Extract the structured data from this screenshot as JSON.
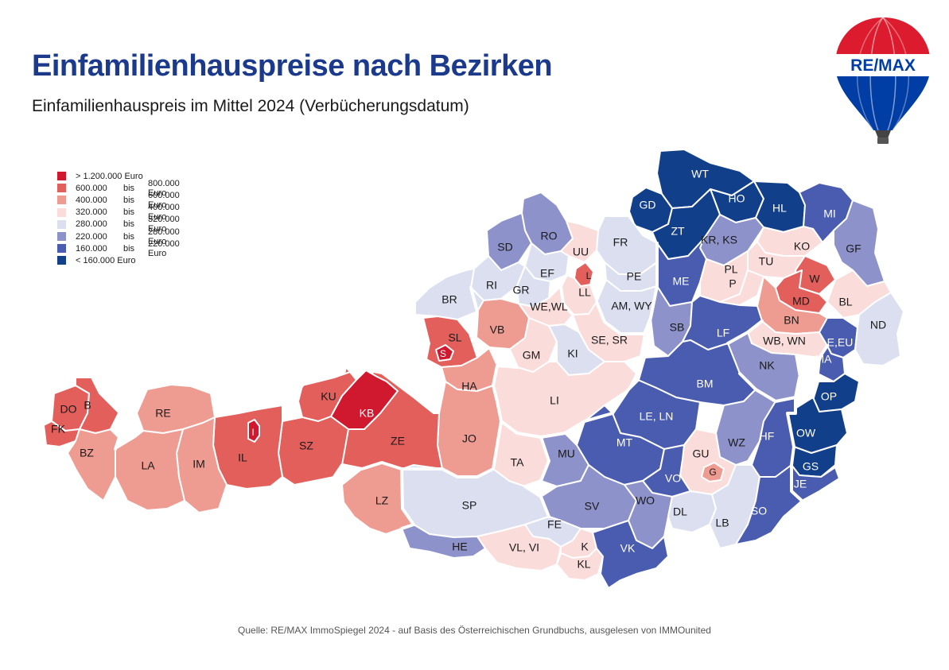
{
  "title": "Einfamilienhauspreise nach Bezirken",
  "subtitle": "Einfamilienhauspreis im Mittel 2024 (Verbücherungsdatum)",
  "source": "Quelle: RE/MAX ImmoSpiegel 2024 - auf Basis des Österreichischen Grundbuchs, ausgelesen von IMMOunited",
  "logo": {
    "text": "RE/MAX",
    "icon": "hot-air-balloon-logo",
    "colors": [
      "#dc1c2e",
      "#ffffff",
      "#003da5"
    ]
  },
  "legend": [
    {
      "id": "c1",
      "color": "#d0182f",
      "a": "> 1.200.000 Euro",
      "b": "",
      "c": ""
    },
    {
      "id": "c2",
      "color": "#e25f5c",
      "a": "600.000",
      "b": "bis",
      "c": "800.000  Euro"
    },
    {
      "id": "c3",
      "color": "#ee9b92",
      "a": "400.000",
      "b": "bis",
      "c": "600.000  Euro"
    },
    {
      "id": "c4",
      "color": "#fadcdb",
      "a": "320.000",
      "b": "bis",
      "c": "400.000  Euro"
    },
    {
      "id": "c5",
      "color": "#dcdff0",
      "a": "280.000",
      "b": "bis",
      "c": "320.000  Euro"
    },
    {
      "id": "c6",
      "color": "#8d92cb",
      "a": "220.000",
      "b": "bis",
      "c": "280.000  Euro"
    },
    {
      "id": "c7",
      "color": "#4a5cb0",
      "a": "160.000",
      "b": "bis",
      "c": "220.000  Euro"
    },
    {
      "id": "c8",
      "color": "#123f8a",
      "a": "< 160.000 Euro",
      "b": "",
      "c": ""
    }
  ],
  "districts": [
    {
      "code": "WT",
      "class": "c8"
    },
    {
      "code": "GD",
      "class": "c8"
    },
    {
      "code": "HO",
      "class": "c8"
    },
    {
      "code": "HL",
      "class": "c8"
    },
    {
      "code": "ZT",
      "class": "c8"
    },
    {
      "code": "MI",
      "class": "c7"
    },
    {
      "code": "KR, KS",
      "class": "c6"
    },
    {
      "code": "KO",
      "class": "c4"
    },
    {
      "code": "GF",
      "class": "c6"
    },
    {
      "code": "TU",
      "class": "c4"
    },
    {
      "code": "ME",
      "class": "c7"
    },
    {
      "code": "PL",
      "class": "c4"
    },
    {
      "code": "P",
      "class": "c4"
    },
    {
      "code": "W",
      "class": "c2"
    },
    {
      "code": "MD",
      "class": "c2"
    },
    {
      "code": "BL",
      "class": "c4"
    },
    {
      "code": "BN",
      "class": "c3"
    },
    {
      "code": "SB",
      "class": "c6"
    },
    {
      "code": "LF",
      "class": "c7"
    },
    {
      "code": "WB, WN",
      "class": "c4"
    },
    {
      "code": "E,EU",
      "class": "c7"
    },
    {
      "code": "ND",
      "class": "c5"
    },
    {
      "code": "MA",
      "class": "c7"
    },
    {
      "code": "NK",
      "class": "c6"
    },
    {
      "code": "OP",
      "class": "c8"
    },
    {
      "code": "OW",
      "class": "c8"
    },
    {
      "code": "GS",
      "class": "c8"
    },
    {
      "code": "JE",
      "class": "c7"
    },
    {
      "code": "RO",
      "class": "c6"
    },
    {
      "code": "SD",
      "class": "c6"
    },
    {
      "code": "UU",
      "class": "c4"
    },
    {
      "code": "L",
      "class": "c2"
    },
    {
      "code": "FR",
      "class": "c5"
    },
    {
      "code": "EF",
      "class": "c5"
    },
    {
      "code": "PE",
      "class": "c5"
    },
    {
      "code": "RI",
      "class": "c5"
    },
    {
      "code": "GR",
      "class": "c5"
    },
    {
      "code": "LL",
      "class": "c4"
    },
    {
      "code": "BR",
      "class": "c5"
    },
    {
      "code": "WE,WL",
      "class": "c4"
    },
    {
      "code": "AM, WY",
      "class": "c5"
    },
    {
      "code": "SL",
      "class": "c2"
    },
    {
      "code": "S",
      "class": "c1"
    },
    {
      "code": "VB",
      "class": "c3"
    },
    {
      "code": "GM",
      "class": "c4"
    },
    {
      "code": "SE, SR",
      "class": "c4"
    },
    {
      "code": "KI",
      "class": "c5"
    },
    {
      "code": "HA",
      "class": "c3"
    },
    {
      "code": "LI",
      "class": "c4"
    },
    {
      "code": "BM",
      "class": "c7"
    },
    {
      "code": "JO",
      "class": "c3"
    },
    {
      "code": "LE, LN",
      "class": "c7"
    },
    {
      "code": "MT",
      "class": "c7"
    },
    {
      "code": "WZ",
      "class": "c6"
    },
    {
      "code": "HF",
      "class": "c7"
    },
    {
      "code": "GU",
      "class": "c4"
    },
    {
      "code": "G",
      "class": "c3"
    },
    {
      "code": "TA",
      "class": "c4"
    },
    {
      "code": "MU",
      "class": "c6"
    },
    {
      "code": "VO",
      "class": "c7"
    },
    {
      "code": "SP",
      "class": "c5"
    },
    {
      "code": "SV",
      "class": "c6"
    },
    {
      "code": "WO",
      "class": "c6"
    },
    {
      "code": "DL",
      "class": "c5"
    },
    {
      "code": "LB",
      "class": "c5"
    },
    {
      "code": "SO",
      "class": "c7"
    },
    {
      "code": "FE",
      "class": "c5"
    },
    {
      "code": "HE",
      "class": "c6"
    },
    {
      "code": "VL, VI",
      "class": "c4"
    },
    {
      "code": "K",
      "class": "c4"
    },
    {
      "code": "KL",
      "class": "c4"
    },
    {
      "code": "VK",
      "class": "c7"
    },
    {
      "code": "LZ",
      "class": "c3"
    },
    {
      "code": "ZE",
      "class": "c2"
    },
    {
      "code": "KB",
      "class": "c1"
    },
    {
      "code": "KU",
      "class": "c2"
    },
    {
      "code": "SZ",
      "class": "c2"
    },
    {
      "code": "IL",
      "class": "c2"
    },
    {
      "code": "I",
      "class": "c1"
    },
    {
      "code": "RE",
      "class": "c3"
    },
    {
      "code": "IM",
      "class": "c3"
    },
    {
      "code": "LA",
      "class": "c3"
    },
    {
      "code": "DO",
      "class": "c2"
    },
    {
      "code": "B",
      "class": "c2"
    },
    {
      "code": "FK",
      "class": "c2"
    },
    {
      "code": "BZ",
      "class": "c3"
    }
  ]
}
